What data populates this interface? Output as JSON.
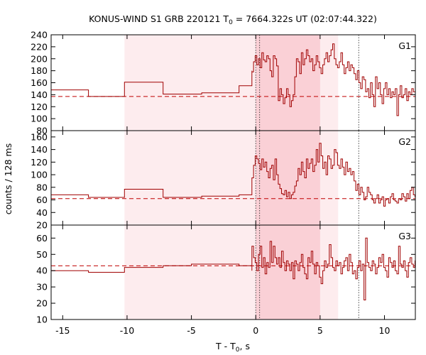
{
  "chart_data": {
    "type": "line",
    "title": "KONUS-WIND S1 GRB 220121 T",
    "title_sub": "0",
    "title_rest": " = 7664.322s UT (02:07:44.322)",
    "xlabel": "T - T",
    "xlabel_sub": "0",
    "xlabel_rest": ", s",
    "ylabel": "counts / 128 ms",
    "xlim": [
      -15.9,
      12.4
    ],
    "x_ticks": [
      -15,
      -10,
      -5,
      0,
      5,
      10
    ],
    "x_tick_labels": [
      "-15",
      "-10",
      "-5",
      "0",
      "5",
      "10"
    ],
    "shade_light": [
      -10.2,
      6.4
    ],
    "shade_dark": [
      0,
      5.0
    ],
    "dotted_lines": [
      0,
      0.3,
      8.0
    ],
    "colors": {
      "line": "#a00000",
      "shade_light": "#fdecee",
      "shade_dark": "#fad0d6",
      "dashed": "#c00000"
    },
    "panels": [
      {
        "name": "G1",
        "ylim": [
          80,
          240
        ],
        "yticks": [
          80,
          100,
          120,
          140,
          160,
          180,
          200,
          220,
          240
        ],
        "ytick_labels": [
          "80",
          "100",
          "120",
          "140",
          "160",
          "180",
          "200",
          "220",
          "240"
        ],
        "background": 137,
        "steps": [
          [
            -15.9,
            148
          ],
          [
            -13.0,
            137
          ],
          [
            -10.2,
            161
          ],
          [
            -7.2,
            141
          ],
          [
            -4.2,
            143
          ],
          [
            -1.3,
            155
          ],
          [
            -0.3,
            180
          ]
        ],
        "fine_start": -0.3,
        "fine_dt": 0.128,
        "fine_values": [
          178,
          195,
          205,
          190,
          200,
          185,
          210,
          198,
          195,
          205,
          200,
          180,
          170,
          205,
          200,
          188,
          130,
          150,
          140,
          125,
          135,
          150,
          140,
          120,
          130,
          140,
          170,
          200,
          195,
          175,
          210,
          190,
          200,
          215,
          205,
          195,
          200,
          180,
          190,
          205,
          195,
          185,
          175,
          190,
          200,
          210,
          195,
          205,
          215,
          225,
          200,
          190,
          185,
          195,
          210,
          190,
          175,
          185,
          195,
          180,
          190,
          185,
          175,
          165,
          180,
          160,
          150,
          170,
          165,
          145,
          150,
          135,
          160,
          140,
          120,
          170,
          150,
          160,
          140,
          125,
          150,
          160,
          140,
          150,
          135,
          145,
          140,
          150,
          105,
          140,
          155,
          135,
          140,
          150,
          130,
          145,
          140,
          150,
          145
        ]
      },
      {
        "name": "G2",
        "ylim": [
          20,
          170
        ],
        "yticks": [
          20,
          40,
          60,
          80,
          100,
          120,
          140,
          160
        ],
        "ytick_labels": [
          "20",
          "40",
          "60",
          "80",
          "100",
          "120",
          "140",
          "160"
        ],
        "background": 62,
        "steps": [
          [
            -15.9,
            68
          ],
          [
            -13.0,
            64
          ],
          [
            -10.2,
            77
          ],
          [
            -7.2,
            64
          ],
          [
            -4.2,
            66
          ],
          [
            -1.3,
            68
          ],
          [
            -0.3,
            95
          ]
        ],
        "fine_start": -0.3,
        "fine_dt": 0.128,
        "fine_values": [
          95,
          115,
          130,
          125,
          118,
          108,
          125,
          112,
          120,
          105,
          95,
          110,
          115,
          92,
          125,
          100,
          85,
          78,
          70,
          68,
          75,
          65,
          72,
          62,
          68,
          72,
          82,
          90,
          110,
          100,
          120,
          105,
          95,
          125,
          110,
          118,
          125,
          105,
          115,
          140,
          120,
          150,
          130,
          110,
          120,
          100,
          130,
          125,
          110,
          115,
          140,
          135,
          115,
          110,
          125,
          112,
          100,
          120,
          105,
          110,
          100,
          105,
          90,
          75,
          85,
          68,
          80,
          72,
          60,
          65,
          80,
          72,
          68,
          60,
          55,
          62,
          68,
          55,
          60,
          65,
          50,
          60,
          62,
          55,
          65,
          70,
          60,
          58,
          55,
          62,
          60,
          70,
          65,
          58,
          70,
          62,
          75,
          80,
          68,
          65
        ]
      },
      {
        "name": "G3",
        "ylim": [
          10,
          68
        ],
        "yticks": [
          10,
          20,
          30,
          40,
          50,
          60
        ],
        "ytick_labels": [
          "10",
          "20",
          "30",
          "40",
          "50",
          "60"
        ],
        "background": 43,
        "steps": [
          [
            -15.9,
            40
          ],
          [
            -13.0,
            39
          ],
          [
            -10.2,
            42
          ],
          [
            -7.2,
            43
          ],
          [
            -5.0,
            44
          ],
          [
            -1.3,
            43
          ],
          [
            -0.3,
            40
          ]
        ],
        "fine_start": -0.3,
        "fine_dt": 0.128,
        "fine_values": [
          55,
          48,
          45,
          40,
          50,
          55,
          42,
          48,
          38,
          45,
          42,
          58,
          45,
          55,
          48,
          44,
          48,
          42,
          52,
          45,
          40,
          46,
          44,
          40,
          45,
          35,
          46,
          44,
          40,
          45,
          50,
          42,
          38,
          35,
          48,
          45,
          52,
          44,
          38,
          45,
          43,
          36,
          32,
          40,
          46,
          42,
          44,
          56,
          48,
          42,
          40,
          46,
          43,
          45,
          38,
          42,
          46,
          48,
          40,
          50,
          45,
          38,
          40,
          35,
          42,
          46,
          40,
          44,
          22,
          60,
          45,
          42,
          40,
          46,
          44,
          38,
          42,
          48,
          45,
          50,
          42,
          40,
          36,
          48,
          45,
          42,
          46,
          40,
          38,
          55,
          44,
          42,
          46,
          40,
          36,
          45,
          48,
          44,
          42,
          46,
          40,
          50,
          44
        ]
      }
    ]
  }
}
